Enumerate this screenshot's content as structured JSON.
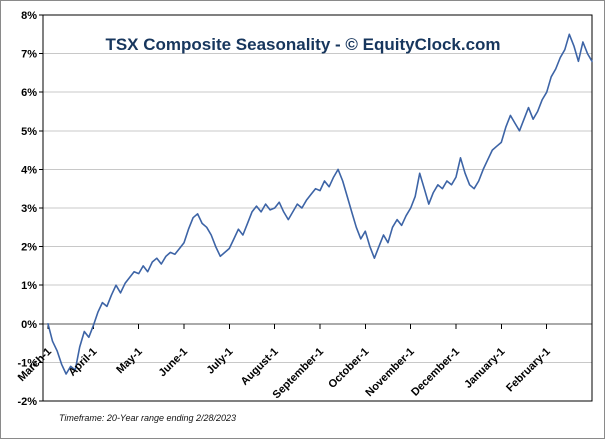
{
  "title": "TSX Composite Seasonality - © EquityClock.com",
  "footnote": "Timeframe: 20-Year range ending 2/28/2023",
  "colors": {
    "line": "#3d64a6",
    "grid": "#c8c8c8",
    "axis": "#555555",
    "plot_border": "#000000",
    "title": "#17365d",
    "outer_border": "#8a8a8a"
  },
  "chart_data": {
    "type": "line",
    "title": "TSX Composite Seasonality - © EquityClock.com",
    "xlabel": "",
    "ylabel": "",
    "ylim": [
      -2,
      8
    ],
    "ytick_step": 1,
    "ytick_labels": [
      "-2%",
      "-1%",
      "0%",
      "1%",
      "2%",
      "3%",
      "4%",
      "5%",
      "6%",
      "7%",
      "8%"
    ],
    "grid": "horizontal-only",
    "legend": "none",
    "categories": [
      "March-1",
      "April-1",
      "May-1",
      "June-1",
      "July-1",
      "August-1",
      "September-1",
      "October-1",
      "November-1",
      "December-1",
      "January-1",
      "February-1"
    ],
    "x_unit": "months after March 1",
    "x_start": 0,
    "x_step": 0.1,
    "values": [
      0.0,
      -0.45,
      -0.7,
      -1.05,
      -1.3,
      -1.1,
      -1.2,
      -0.6,
      -0.2,
      -0.35,
      -0.05,
      0.3,
      0.55,
      0.45,
      0.75,
      1.0,
      0.8,
      1.05,
      1.2,
      1.35,
      1.3,
      1.5,
      1.35,
      1.6,
      1.7,
      1.55,
      1.75,
      1.85,
      1.8,
      1.95,
      2.1,
      2.45,
      2.75,
      2.85,
      2.6,
      2.5,
      2.3,
      2.0,
      1.75,
      1.85,
      1.95,
      2.2,
      2.45,
      2.3,
      2.6,
      2.9,
      3.05,
      2.9,
      3.1,
      2.95,
      3.0,
      3.15,
      2.9,
      2.7,
      2.9,
      3.1,
      3.0,
      3.2,
      3.35,
      3.5,
      3.45,
      3.7,
      3.55,
      3.8,
      4.0,
      3.7,
      3.3,
      2.9,
      2.5,
      2.2,
      2.4,
      2.0,
      1.7,
      2.0,
      2.3,
      2.1,
      2.5,
      2.7,
      2.55,
      2.8,
      3.0,
      3.3,
      3.9,
      3.5,
      3.1,
      3.4,
      3.6,
      3.5,
      3.7,
      3.6,
      3.8,
      4.3,
      3.9,
      3.6,
      3.5,
      3.7,
      4.0,
      4.25,
      4.5,
      4.6,
      4.7,
      5.1,
      5.4,
      5.2,
      5.0,
      5.3,
      5.6,
      5.3,
      5.5,
      5.8,
      6.0,
      6.4,
      6.6,
      6.9,
      7.1,
      7.5,
      7.2,
      6.8,
      7.3,
      7.0,
      6.8
    ]
  }
}
